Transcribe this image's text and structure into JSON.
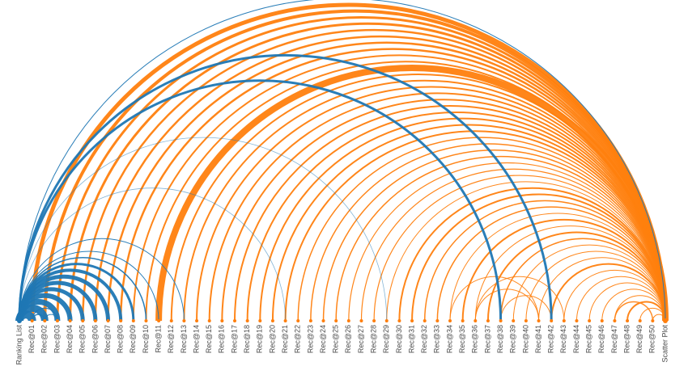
{
  "colors": {
    "ranking_list": "#1f77b4",
    "scatter_plot": "#ff7f0e",
    "label": "#4a4a4a"
  },
  "nodes": [
    "Ranking List",
    "Rec@01",
    "Rec@02",
    "Rec@03",
    "Rec@04",
    "Rec@05",
    "Rec@06",
    "Rec@07",
    "Rec@08",
    "Rec@09",
    "Rec@10",
    "Rec@11",
    "Rec@12",
    "Rec@13",
    "Rec@14",
    "Rec@15",
    "Rec@16",
    "Rec@17",
    "Rec@18",
    "Rec@19",
    "Rec@20",
    "Rec@21",
    "Rec@22",
    "Rec@23",
    "Rec@24",
    "Rec@25",
    "Rec@26",
    "Rec@27",
    "Rec@28",
    "Rec@29",
    "Rec@30",
    "Rec@31",
    "Rec@32",
    "Rec@33",
    "Rec@34",
    "Rec@35",
    "Rec@36",
    "Rec@37",
    "Rec@38",
    "Rec@39",
    "Rec@40",
    "Rec@41",
    "Rec@42",
    "Rec@43",
    "Rec@44",
    "Rec@45",
    "Rec@46",
    "Rec@47",
    "Rec@48",
    "Rec@49",
    "Rec@50",
    "Scatter Plot"
  ],
  "links": {
    "ranking_list": [
      {
        "target": "Rec@01",
        "weight": 10
      },
      {
        "target": "Rec@02",
        "weight": 9
      },
      {
        "target": "Rec@03",
        "weight": 7
      },
      {
        "target": "Rec@04",
        "weight": 6
      },
      {
        "target": "Rec@05",
        "weight": 5
      },
      {
        "target": "Rec@06",
        "weight": 5
      },
      {
        "target": "Rec@07",
        "weight": 5
      },
      {
        "target": "Rec@08",
        "weight": 4
      },
      {
        "target": "Rec@09",
        "weight": 3
      },
      {
        "target": "Rec@10",
        "weight": 1.5
      },
      {
        "target": "Rec@11",
        "weight": 1
      },
      {
        "target": "Rec@13",
        "weight": 1
      },
      {
        "target": "Rec@21",
        "weight": 0.8
      },
      {
        "target": "Rec@29",
        "weight": 0.8
      },
      {
        "target": "Rec@38",
        "weight": 3
      },
      {
        "target": "Rec@42",
        "weight": 3
      },
      {
        "target": "Scatter Plot",
        "weight": 1
      }
    ],
    "scatter_plot": [
      {
        "source": "Rec@01",
        "weight": 5
      },
      {
        "source": "Rec@02",
        "weight": 4
      },
      {
        "source": "Rec@03",
        "weight": 3
      },
      {
        "source": "Rec@04",
        "weight": 3
      },
      {
        "source": "Rec@05",
        "weight": 2.5
      },
      {
        "source": "Rec@06",
        "weight": 2.5
      },
      {
        "source": "Rec@07",
        "weight": 2.5
      },
      {
        "source": "Rec@08",
        "weight": 2.5
      },
      {
        "source": "Rec@09",
        "weight": 2
      },
      {
        "source": "Rec@10",
        "weight": 2
      },
      {
        "source": "Rec@11",
        "weight": 8
      },
      {
        "source": "Rec@12",
        "weight": 2
      },
      {
        "source": "Rec@13",
        "weight": 2
      },
      {
        "source": "Rec@14",
        "weight": 2
      },
      {
        "source": "Rec@15",
        "weight": 2
      },
      {
        "source": "Rec@16",
        "weight": 2
      },
      {
        "source": "Rec@17",
        "weight": 2
      },
      {
        "source": "Rec@18",
        "weight": 2
      },
      {
        "source": "Rec@19",
        "weight": 2
      },
      {
        "source": "Rec@20",
        "weight": 2
      },
      {
        "source": "Rec@21",
        "weight": 2
      },
      {
        "source": "Rec@22",
        "weight": 1.5
      },
      {
        "source": "Rec@23",
        "weight": 1.5
      },
      {
        "source": "Rec@24",
        "weight": 1.5
      },
      {
        "source": "Rec@25",
        "weight": 1.5
      },
      {
        "source": "Rec@26",
        "weight": 1.2
      },
      {
        "source": "Rec@27",
        "weight": 1.2
      },
      {
        "source": "Rec@28",
        "weight": 1.2
      },
      {
        "source": "Rec@29",
        "weight": 1
      },
      {
        "source": "Rec@30",
        "weight": 2
      },
      {
        "source": "Rec@31",
        "weight": 2
      },
      {
        "source": "Rec@32",
        "weight": 1.5
      },
      {
        "source": "Rec@33",
        "weight": 1.5
      },
      {
        "source": "Rec@34",
        "weight": 1
      },
      {
        "source": "Rec@35",
        "weight": 2
      },
      {
        "source": "Rec@36",
        "weight": 1
      },
      {
        "source": "Rec@37",
        "weight": 2
      },
      {
        "source": "Rec@38",
        "weight": 1.5
      },
      {
        "source": "Rec@39",
        "weight": 1
      },
      {
        "source": "Rec@40",
        "weight": 1
      },
      {
        "source": "Rec@41",
        "weight": 1
      },
      {
        "source": "Rec@42",
        "weight": 2
      },
      {
        "source": "Rec@43",
        "weight": 1
      },
      {
        "source": "Rec@44",
        "weight": 1
      },
      {
        "source": "Rec@45",
        "weight": 1
      },
      {
        "source": "Rec@46",
        "weight": 1
      },
      {
        "source": "Rec@47",
        "weight": 1
      },
      {
        "source": "Rec@48",
        "weight": 2
      },
      {
        "source": "Rec@49",
        "weight": 1
      },
      {
        "source": "Rec@50",
        "weight": 1
      }
    ],
    "rec_to_rec": [
      {
        "source": "Rec@01",
        "target": "Rec@02",
        "weight": 1.5
      },
      {
        "source": "Rec@01",
        "target": "Rec@03",
        "weight": 1.2
      },
      {
        "source": "Rec@02",
        "target": "Rec@03",
        "weight": 1
      },
      {
        "source": "Rec@34",
        "target": "Rec@41",
        "weight": 1
      },
      {
        "source": "Rec@36",
        "target": "Rec@41",
        "weight": 1
      },
      {
        "source": "Rec@36",
        "target": "Rec@43",
        "weight": 1
      },
      {
        "source": "Rec@38",
        "target": "Rec@42",
        "weight": 1
      },
      {
        "source": "Rec@47",
        "target": "Rec@50",
        "weight": 1.5
      }
    ]
  }
}
